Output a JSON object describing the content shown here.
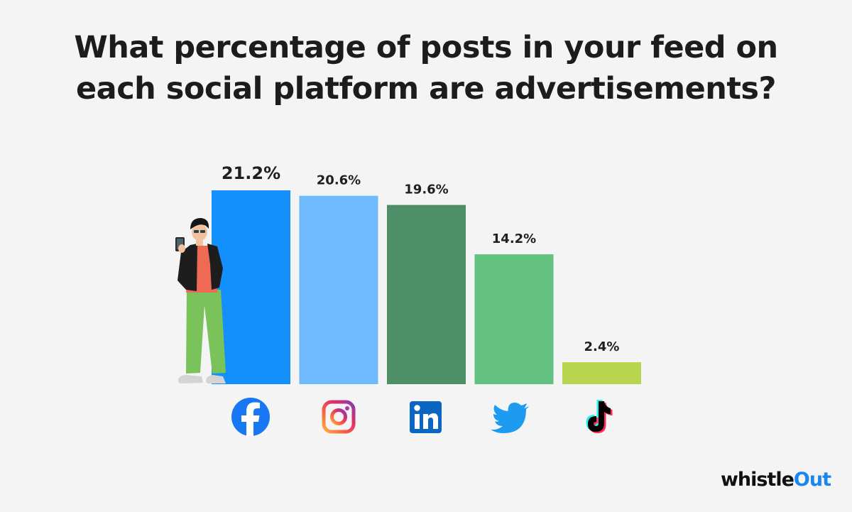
{
  "title_lines": [
    "What percentage of posts in your feed on",
    "each social platform are advertisements?"
  ],
  "chart_data": {
    "type": "bar",
    "title": "What percentage of posts in your feed on each social platform are advertisements?",
    "xlabel": "",
    "ylabel": "",
    "categories": [
      "Facebook",
      "Instagram",
      "LinkedIn",
      "Twitter",
      "TikTok"
    ],
    "values": [
      21.2,
      20.6,
      19.6,
      14.2,
      2.4
    ],
    "value_labels": [
      "21.2%",
      "20.6%",
      "19.6%",
      "14.2%",
      "2.4%"
    ],
    "bar_colors": [
      "#1390fb",
      "#6ebafc",
      "#4d8f67",
      "#62c17f",
      "#b9d44e"
    ],
    "category_icons": [
      "facebook-icon",
      "instagram-icon",
      "linkedin-icon",
      "twitter-icon",
      "tiktok-icon"
    ],
    "ylim": [
      0,
      21.2
    ],
    "grid": false,
    "legend": "none"
  },
  "logo": {
    "part1": "whistle",
    "part2": "Out"
  },
  "colors": {
    "background": "#f4f4f4",
    "title": "#1c1c1c",
    "brand_blue": "#1a86f0"
  }
}
